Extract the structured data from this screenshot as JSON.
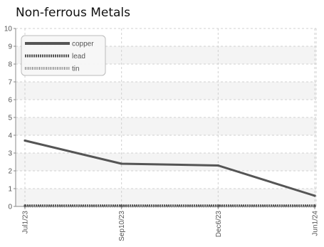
{
  "chart_data": {
    "type": "line",
    "title": "Non-ferrous Metals",
    "xlabel": "",
    "ylabel": "",
    "x": [
      "Jul1/23",
      "Sep10/23",
      "Dec6/23",
      "Jun1/24"
    ],
    "ylim": [
      0,
      10
    ],
    "yticks": [
      0,
      1,
      2,
      3,
      4,
      5,
      6,
      7,
      8,
      9,
      10
    ],
    "grid": true,
    "legend_position": "top-left",
    "series": [
      {
        "name": "copper",
        "values": [
          3.7,
          2.4,
          2.3,
          0.6
        ],
        "color": "#555555",
        "style": "solid"
      },
      {
        "name": "lead",
        "values": [
          0.05,
          0.05,
          0.05,
          0.05
        ],
        "color": "#555555",
        "style": "dashed"
      },
      {
        "name": "tin",
        "values": [
          0.0,
          0.0,
          0.0,
          0.0
        ],
        "color": "#777777",
        "style": "dotted"
      }
    ]
  }
}
